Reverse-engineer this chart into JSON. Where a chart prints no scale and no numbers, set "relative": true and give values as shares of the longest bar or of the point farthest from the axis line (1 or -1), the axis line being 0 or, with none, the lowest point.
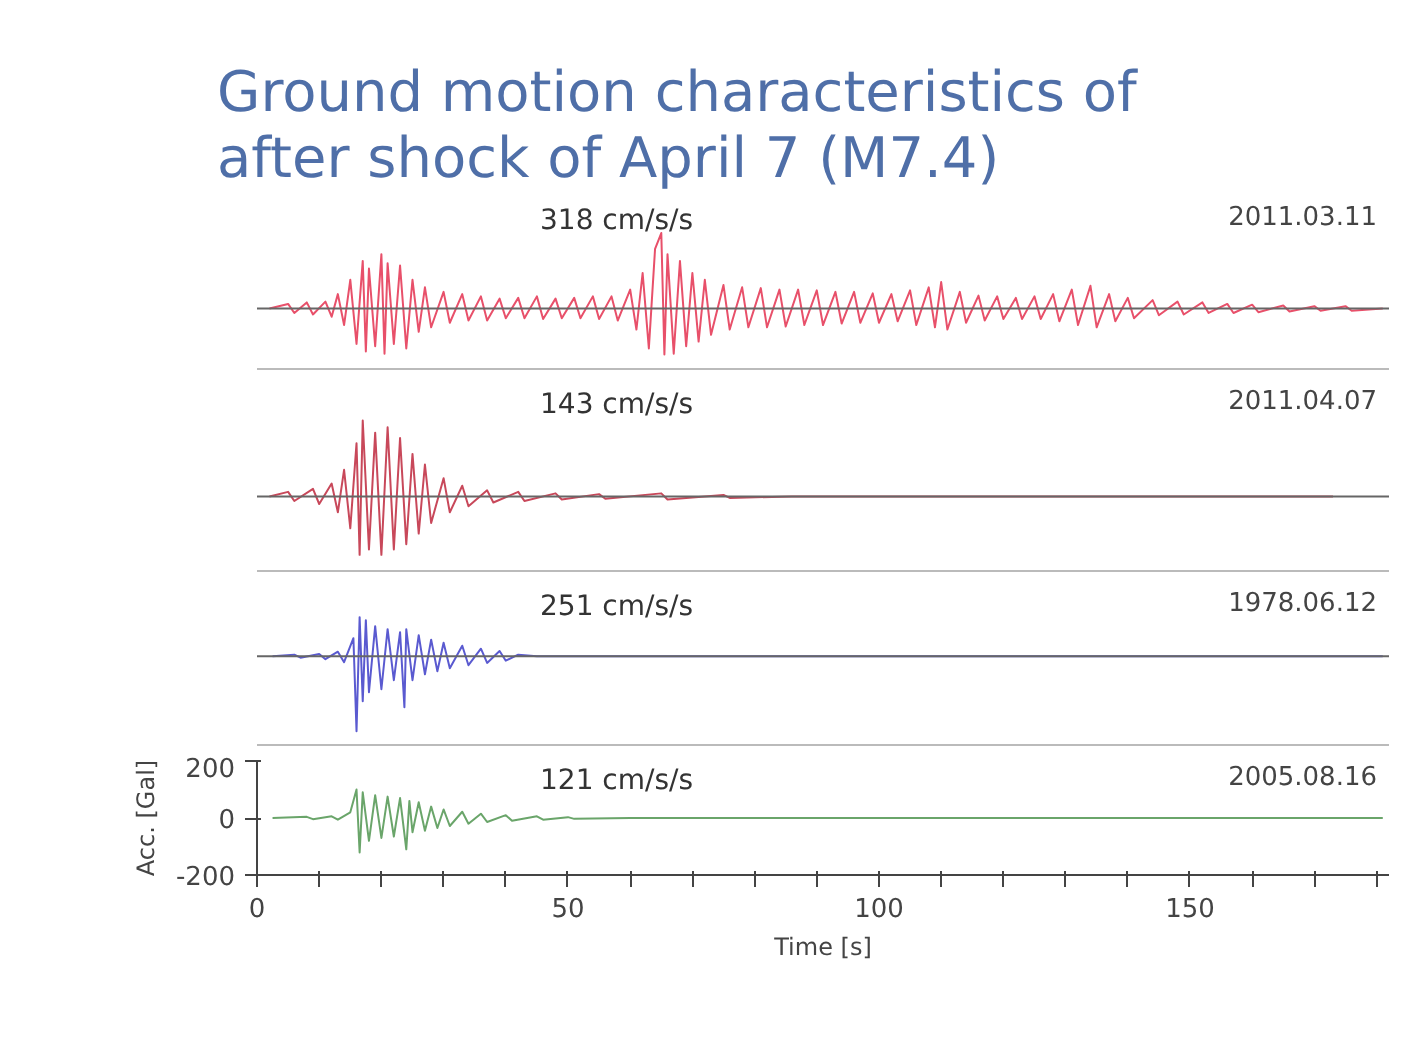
{
  "chart_data": [
    {
      "type": "line",
      "title": "Ground motion characteristics of after shock of April 7 (M7.4)",
      "relative": true,
      "xlim": [
        0,
        182
      ],
      "tick_labels": false,
      "grid": false,
      "annotations": [
        "318 cm/s/s"
      ],
      "series": [
        {
          "name": "2011.03.11",
          "color": "#e8506a",
          "x": [
            2,
            5,
            6,
            8,
            9,
            11,
            12,
            13,
            14,
            15,
            16,
            17,
            17.5,
            18,
            19,
            20,
            20.5,
            21,
            22,
            23,
            24,
            25,
            26,
            27,
            28,
            30,
            31,
            33,
            34,
            36,
            37,
            39,
            40,
            42,
            43,
            45,
            46,
            48,
            49,
            51,
            52,
            54,
            55,
            57,
            58,
            60,
            61,
            62,
            63,
            64,
            65,
            65.5,
            66,
            67,
            68,
            69,
            70,
            71,
            72,
            73,
            75,
            76,
            78,
            79,
            81,
            82,
            84,
            85,
            87,
            88,
            90,
            91,
            93,
            94,
            96,
            97,
            99,
            100,
            102,
            103,
            105,
            106,
            108,
            109,
            110,
            111,
            113,
            114,
            116,
            117,
            119,
            120,
            122,
            123,
            125,
            126,
            128,
            129,
            131,
            132,
            134,
            135,
            137,
            138,
            140,
            141,
            144,
            145,
            148,
            149,
            152,
            153,
            156,
            157,
            160,
            161,
            165,
            166,
            170,
            171,
            175,
            176,
            181
          ],
          "values": [
            0,
            0.06,
            -0.06,
            0.08,
            -0.08,
            0.09,
            -0.11,
            0.19,
            -0.22,
            0.38,
            -0.47,
            0.63,
            -0.57,
            0.53,
            -0.5,
            0.72,
            -0.6,
            0.6,
            -0.47,
            0.57,
            -0.53,
            0.38,
            -0.31,
            0.28,
            -0.25,
            0.22,
            -0.19,
            0.19,
            -0.16,
            0.16,
            -0.16,
            0.13,
            -0.13,
            0.14,
            -0.13,
            0.16,
            -0.14,
            0.13,
            -0.13,
            0.14,
            -0.13,
            0.16,
            -0.14,
            0.16,
            -0.16,
            0.25,
            -0.28,
            0.47,
            -0.53,
            0.79,
            1,
            -0.61,
            0.72,
            -0.6,
            0.63,
            -0.5,
            0.47,
            -0.44,
            0.38,
            -0.35,
            0.31,
            -0.28,
            0.28,
            -0.25,
            0.27,
            -0.25,
            0.25,
            -0.24,
            0.25,
            -0.22,
            0.24,
            -0.22,
            0.22,
            -0.2,
            0.22,
            -0.19,
            0.2,
            -0.19,
            0.19,
            -0.17,
            0.24,
            -0.22,
            0.28,
            -0.25,
            0.35,
            -0.28,
            0.22,
            -0.19,
            0.17,
            -0.16,
            0.16,
            -0.14,
            0.14,
            -0.14,
            0.16,
            -0.14,
            0.19,
            -0.17,
            0.25,
            -0.22,
            0.3,
            -0.25,
            0.19,
            -0.17,
            0.14,
            -0.13,
            0.11,
            -0.09,
            0.09,
            -0.08,
            0.08,
            -0.06,
            0.06,
            -0.06,
            0.05,
            -0.05,
            0.04,
            -0.04,
            0.03,
            -0.03,
            0.03,
            -0.03,
            0
          ]
        }
      ]
    },
    {
      "type": "line",
      "relative": true,
      "xlim": [
        0,
        182
      ],
      "tick_labels": false,
      "grid": false,
      "annotations": [
        "143 cm/s/s"
      ],
      "series": [
        {
          "name": "2011.04.07",
          "color": "#c8485a",
          "x": [
            2,
            5,
            6,
            9,
            10,
            12,
            13,
            14,
            15,
            16,
            16.5,
            17,
            18,
            19,
            20,
            21,
            22,
            23,
            24,
            25,
            26,
            27,
            28,
            30,
            31,
            33,
            34,
            37,
            38,
            42,
            43,
            48,
            49,
            55,
            56,
            65,
            66,
            75,
            76,
            86,
            173
          ],
          "values": [
            0,
            0.06,
            -0.06,
            0.1,
            -0.1,
            0.17,
            -0.21,
            0.35,
            -0.42,
            0.7,
            -0.77,
            1,
            -0.7,
            0.84,
            -0.77,
            0.91,
            -0.7,
            0.77,
            -0.63,
            0.56,
            -0.49,
            0.42,
            -0.35,
            0.24,
            -0.21,
            0.14,
            -0.13,
            0.08,
            -0.08,
            0.06,
            -0.06,
            0.04,
            -0.04,
            0.03,
            -0.03,
            0.04,
            -0.04,
            0.02,
            -0.02,
            0,
            0
          ]
        }
      ]
    },
    {
      "type": "line",
      "relative": true,
      "xlim": [
        0,
        182
      ],
      "tick_labels": false,
      "grid": false,
      "annotations": [
        "251 cm/s/s"
      ],
      "series": [
        {
          "name": "1978.06.12",
          "color": "#5a5ad0",
          "x": [
            2.5,
            6,
            7,
            10,
            11,
            13,
            14,
            15.5,
            16,
            16.5,
            17,
            17.5,
            18,
            19,
            20,
            21,
            22,
            23,
            23.7,
            24,
            25,
            26,
            27,
            28,
            29,
            30,
            31,
            33,
            34,
            36,
            37,
            39,
            40,
            42,
            45,
            181
          ],
          "values": [
            0,
            0.02,
            -0.02,
            0.03,
            -0.04,
            0.06,
            -0.08,
            0.24,
            -1,
            0.52,
            -0.6,
            0.48,
            -0.48,
            0.4,
            -0.44,
            0.36,
            -0.32,
            0.32,
            -0.68,
            0.36,
            -0.32,
            0.28,
            -0.24,
            0.22,
            -0.2,
            0.18,
            -0.16,
            0.14,
            -0.12,
            0.1,
            -0.09,
            0.07,
            -0.06,
            0.02,
            0,
            0
          ]
        }
      ]
    },
    {
      "type": "line",
      "xlabel": "Time [s]",
      "ylabel": "Acc. [Gal]",
      "xlim": [
        0,
        182
      ],
      "ylim": [
        -200,
        200
      ],
      "grid": false,
      "xticks": [
        0,
        {
          "value": 10,
          "label": null
        },
        {
          "value": 20,
          "label": null
        },
        {
          "value": 30,
          "label": null
        },
        {
          "value": 40,
          "label": null
        },
        50,
        {
          "value": 60,
          "label": null
        },
        {
          "value": 70,
          "label": null
        },
        {
          "value": 80,
          "label": null
        },
        {
          "value": 90,
          "label": null
        },
        100,
        {
          "value": 110,
          "label": null
        },
        {
          "value": 120,
          "label": null
        },
        {
          "value": 130,
          "label": null
        },
        {
          "value": 140,
          "label": null
        },
        150,
        {
          "value": 160,
          "label": null
        },
        {
          "value": 170,
          "label": null
        },
        {
          "value": 180,
          "label": null
        }
      ],
      "yticks": [
        -200,
        0,
        200
      ],
      "annotations": [
        "121 cm/s/s"
      ],
      "series": [
        {
          "name": "2005.08.16",
          "color": "#6aa56a",
          "x": [
            2.5,
            8,
            9,
            12,
            13,
            15,
            16,
            16.5,
            17,
            18,
            19,
            20,
            21,
            22,
            23,
            24,
            24.5,
            25,
            26,
            27,
            28,
            29,
            30,
            31,
            33,
            34,
            36,
            37,
            40,
            41,
            45,
            46,
            50,
            51,
            60,
            181
          ],
          "values": [
            0,
            4,
            -4,
            6,
            -6,
            20,
            100,
            -121,
            90,
            -80,
            80,
            -70,
            75,
            -65,
            70,
            -110,
            60,
            -50,
            55,
            -45,
            40,
            -35,
            30,
            -28,
            22,
            -20,
            15,
            -14,
            10,
            -10,
            6,
            -6,
            3,
            -3,
            0,
            0
          ]
        }
      ]
    }
  ]
}
